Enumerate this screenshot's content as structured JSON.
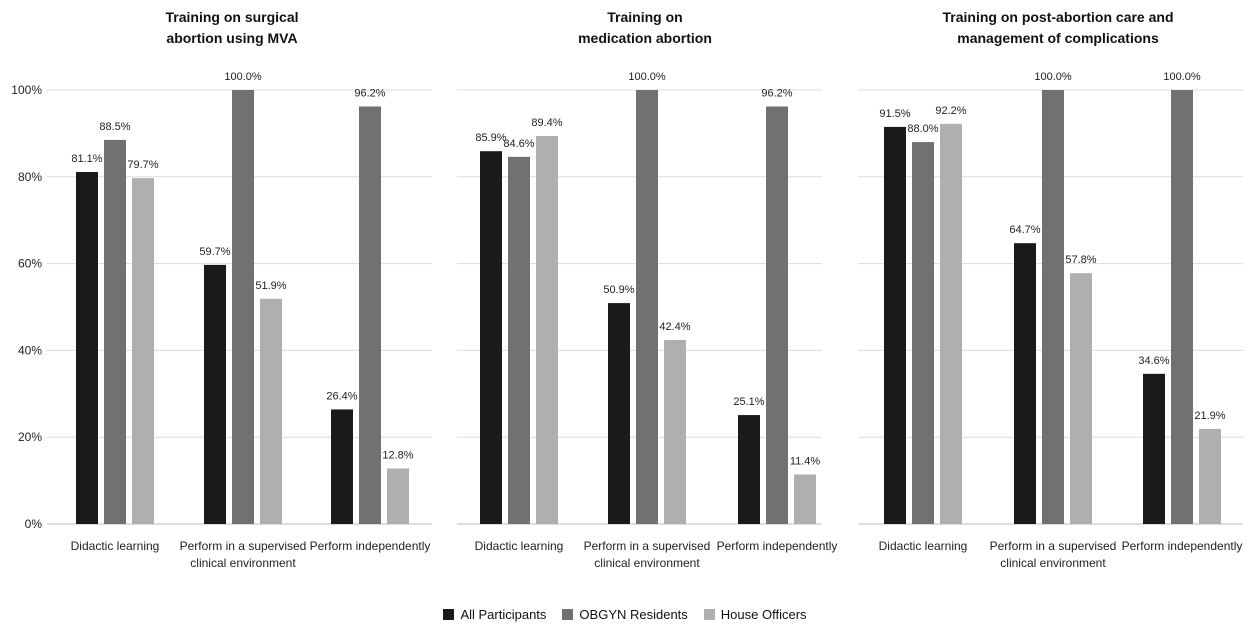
{
  "chart_data": {
    "type": "bar",
    "categories": [
      "Didactic learning",
      "Perform in a supervised clinical environment",
      "Perform independently"
    ],
    "category_lines": [
      [
        "Didactic learning"
      ],
      [
        "Perform in a supervised",
        "clinical environment"
      ],
      [
        "Perform independently"
      ]
    ],
    "yticks": [
      "0%",
      "20%",
      "40%",
      "60%",
      "80%",
      "100%"
    ],
    "ylim": [
      0,
      100
    ],
    "grid": true,
    "legend_position": "bottom",
    "series_colors": [
      "#1a1a1a",
      "#737070",
      "#b0aeae"
    ],
    "panels": [
      {
        "title_lines": [
          "Training on surgical",
          "abortion using MVA"
        ],
        "series": [
          {
            "name": "All Participants",
            "values": [
              81.1,
              59.7,
              26.4
            ]
          },
          {
            "name": "OBGYN Residents",
            "values": [
              88.5,
              100.0,
              96.2
            ]
          },
          {
            "name": "House Officers",
            "values": [
              79.7,
              51.9,
              12.8
            ]
          }
        ]
      },
      {
        "title_lines": [
          "Training on",
          "medication abortion"
        ],
        "series": [
          {
            "name": "All Participants",
            "values": [
              85.9,
              50.9,
              25.1
            ]
          },
          {
            "name": "OBGYN Residents",
            "values": [
              84.6,
              100.0,
              96.2
            ]
          },
          {
            "name": "House Officers",
            "values": [
              89.4,
              42.4,
              11.4
            ]
          }
        ]
      },
      {
        "title_lines": [
          "Training on post-abortion care and",
          "management of complications"
        ],
        "series": [
          {
            "name": "All Participants",
            "values": [
              91.5,
              64.7,
              34.6
            ]
          },
          {
            "name": "OBGYN Residents",
            "values": [
              88.0,
              100.0,
              100.0
            ]
          },
          {
            "name": "House Officers",
            "values": [
              92.2,
              57.8,
              21.9
            ]
          }
        ]
      }
    ],
    "legend": [
      "All Participants",
      "OBGYN Residents",
      "House Officers"
    ]
  }
}
